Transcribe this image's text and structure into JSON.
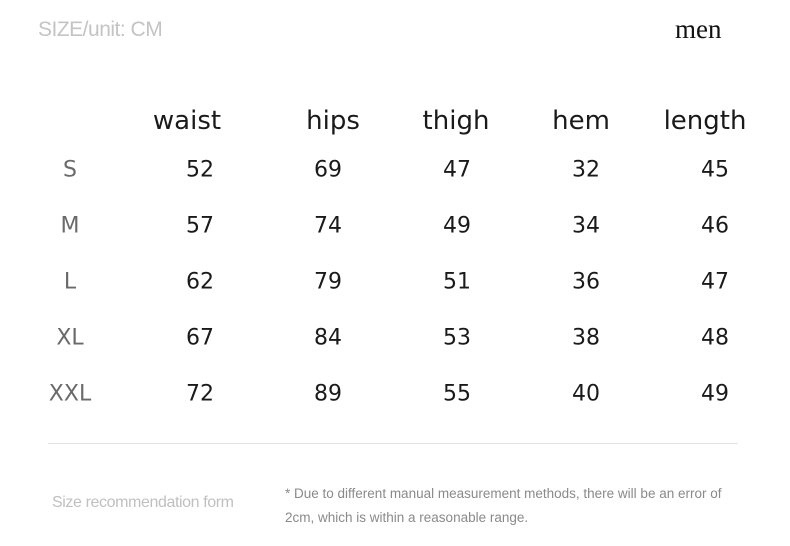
{
  "header": {
    "unit_label": "SIZE/unit: CM",
    "gender": "men"
  },
  "table": {
    "columns": [
      "waist",
      "hips",
      "thigh",
      "hem",
      "length"
    ],
    "rows": [
      {
        "size": "S",
        "values": [
          "52",
          "69",
          "47",
          "32",
          "45"
        ]
      },
      {
        "size": "M",
        "values": [
          "57",
          "74",
          "49",
          "34",
          "46"
        ]
      },
      {
        "size": "L",
        "values": [
          "62",
          "79",
          "51",
          "36",
          "47"
        ]
      },
      {
        "size": "XL",
        "values": [
          "67",
          "84",
          "53",
          "38",
          "48"
        ]
      },
      {
        "size": "XXL",
        "values": [
          "72",
          "89",
          "55",
          "40",
          "49"
        ]
      }
    ]
  },
  "footer": {
    "form_label": "Size recommendation form",
    "note_line1": "* Due to different manual measurement methods, there will be an error of",
    "note_line2": "2cm, which is within a reasonable range."
  }
}
